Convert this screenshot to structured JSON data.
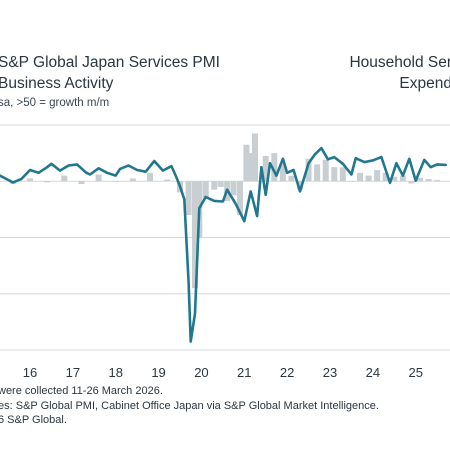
{
  "titles": {
    "left_line1": "S&P Global Japan Services PMI",
    "left_line2": "Business Activity",
    "right_line1": "Household Ser",
    "right_line2": "Expend",
    "subtitle": "sa, >50 = growth m/m"
  },
  "footnotes": {
    "line1": "were collected 11-26 March 2026.",
    "line2": "es: S&P Global PMI, Cabinet Office Japan via S&P Global Market Intelligence.",
    "line3": "6 S&P Global."
  },
  "chart_data": {
    "type": "line",
    "x_tick_labels": [
      "16",
      "17",
      "18",
      "19",
      "20",
      "21",
      "22",
      "23",
      "24",
      "25"
    ],
    "x_range": [
      2015.8,
      2026.3
    ],
    "y_range": [
      20,
      60
    ],
    "grid": "horizontal",
    "legend": "none",
    "colors": {
      "pmi_line": "#21788e",
      "spending_bars": "#c9ced2",
      "grid": "#d5d9dc"
    },
    "series": [
      {
        "kind": "line",
        "x": [
          2015.8,
          2016.0,
          2016.1,
          2016.3,
          2016.5,
          2016.7,
          2016.9,
          2017.0,
          2017.2,
          2017.4,
          2017.6,
          2017.8,
          2017.9,
          2018.1,
          2018.3,
          2018.5,
          2018.6,
          2018.8,
          2019.0,
          2019.2,
          2019.4,
          2019.6,
          2019.8,
          2019.9,
          2020.0,
          2020.1,
          2020.2,
          2020.25,
          2020.35,
          2020.45,
          2020.6,
          2020.8,
          2021.0,
          2021.1,
          2021.3,
          2021.5,
          2021.65,
          2021.8,
          2021.9,
          2022.0,
          2022.1,
          2022.25,
          2022.4,
          2022.5,
          2022.65,
          2022.8,
          2023.0,
          2023.15,
          2023.3,
          2023.45,
          2023.6,
          2023.8,
          2024.0,
          2024.1,
          2024.3,
          2024.5,
          2024.7,
          2024.9,
          2025.05,
          2025.2,
          2025.35,
          2025.5,
          2025.7,
          2025.85,
          2026.0,
          2026.2
        ],
        "y": [
          51.0,
          50.2,
          49.8,
          50.4,
          52.0,
          51.5,
          52.5,
          53.1,
          51.9,
          52.8,
          53.0,
          51.6,
          51.2,
          52.3,
          51.5,
          51.0,
          52.2,
          52.8,
          52.0,
          51.7,
          53.6,
          51.9,
          52.7,
          51.0,
          49.1,
          46.8,
          32.0,
          21.5,
          26.5,
          45.2,
          47.2,
          46.5,
          46.4,
          48.5,
          46.0,
          42.9,
          48.2,
          43.8,
          52.5,
          47.6,
          53.2,
          51.0,
          54.0,
          51.5,
          52.0,
          48.2,
          53.2,
          54.8,
          55.9,
          53.9,
          54.3,
          53.1,
          51.2,
          54.1,
          53.4,
          53.7,
          54.3,
          49.7,
          53.2,
          51.0,
          54.0,
          50.1,
          53.8,
          52.5,
          53.0,
          52.9
        ]
      },
      {
        "kind": "bar",
        "x": [
          2016.1,
          2016.5,
          2016.9,
          2017.3,
          2017.7,
          2018.1,
          2018.5,
          2018.9,
          2019.3,
          2019.7,
          2020.0,
          2020.2,
          2020.35,
          2020.45,
          2020.6,
          2020.8,
          2020.95,
          2021.1,
          2021.25,
          2021.4,
          2021.55,
          2021.65,
          2021.75,
          2021.9,
          2022.0,
          2022.2,
          2022.4,
          2022.6,
          2022.8,
          2023.0,
          2023.2,
          2023.4,
          2023.6,
          2023.8,
          2024.0,
          2024.2,
          2024.4,
          2024.6,
          2024.8,
          2025.0,
          2025.2,
          2025.4,
          2025.6,
          2025.8,
          2026.0
        ],
        "y": [
          49.5,
          50.5,
          49.8,
          51.0,
          49.5,
          51.2,
          50.0,
          50.5,
          51.5,
          50.3,
          48.0,
          44.0,
          31.0,
          40.0,
          47.0,
          48.5,
          49.0,
          46.5,
          47.5,
          44.0,
          56.5,
          55.0,
          58.5,
          50.0,
          54.5,
          55.0,
          53.0,
          51.0,
          48.5,
          54.0,
          53.0,
          53.8,
          52.5,
          52.5,
          50.0,
          51.5,
          51.0,
          52.0,
          51.5,
          50.8,
          51.0,
          49.6,
          50.6,
          50.4,
          50.2
        ]
      }
    ]
  }
}
